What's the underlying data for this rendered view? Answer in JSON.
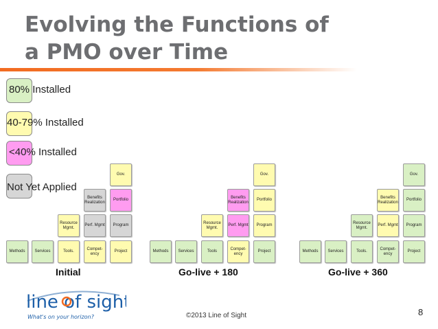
{
  "slide": {
    "title_line1": "Evolving the Functions of",
    "title_line2": "a PMO over Time",
    "copyright": "©2013 Line of Sight",
    "page_number": "8"
  },
  "legend": [
    {
      "label": "80% Installed",
      "color": "#d9f0c4"
    },
    {
      "label": "40-79% Installed",
      "color": "#fffbb0"
    },
    {
      "label": "<40% Installed",
      "color": "#ff9cf0"
    },
    {
      "label": "Not Yet Applied",
      "color": "#d6d6d6"
    }
  ],
  "stages": [
    {
      "label": "Initial",
      "boxes": {
        "methods": "Methods",
        "services": "Services",
        "tools": "Tools.",
        "competency": "Compet-ency",
        "project": "Project",
        "resource": "Resource Mgmt.",
        "perf": "Perf. Mgmt",
        "program": "Program",
        "benefits": "Benefits Realization",
        "portfolio": "Portfolio",
        "gov": "Gov."
      },
      "status": {
        "methods": "green",
        "services": "green",
        "tools": "yellow",
        "competency": "yellow",
        "project": "yellow",
        "resource": "yellow",
        "perf": "grey",
        "program": "grey",
        "benefits": "grey",
        "portfolio": "pink",
        "gov": "yellow"
      }
    },
    {
      "label": "Go-live + 180",
      "boxes": {
        "methods": "Methods",
        "services": "Services",
        "tools": "Tools",
        "competency": "Compet-ency",
        "project": "Project",
        "resource": "Resource Mgmt.",
        "perf": "Perf. Mgmt",
        "program": "Program",
        "benefits": "Benefits Realization",
        "portfolio": "Portfolio",
        "gov": "Gov."
      },
      "status": {
        "methods": "green",
        "services": "green",
        "tools": "green",
        "competency": "yellow",
        "project": "green",
        "resource": "yellow",
        "perf": "pink",
        "program": "yellow",
        "benefits": "pink",
        "portfolio": "yellow",
        "gov": "yellow"
      }
    },
    {
      "label": "Go-live + 360",
      "boxes": {
        "methods": "Methods",
        "services": "Services",
        "tools": "Tools.",
        "competency": "Compet-ency",
        "project": "Project",
        "resource": "Resource Mgmt.",
        "perf": "Perf. Mgmt",
        "program": "Program",
        "benefits": "Benefits Realization",
        "portfolio": "Portfolio",
        "gov": "Gov."
      },
      "status": {
        "methods": "green",
        "services": "green",
        "tools": "green",
        "competency": "green",
        "project": "green",
        "resource": "green",
        "perf": "yellow",
        "program": "green",
        "benefits": "yellow",
        "portfolio": "green",
        "gov": "green"
      }
    }
  ],
  "logo": {
    "text": "line of sight",
    "tagline": "What's on your horizon?",
    "colors": {
      "text": "#1d5fa8",
      "accent": "#f26b21"
    }
  }
}
